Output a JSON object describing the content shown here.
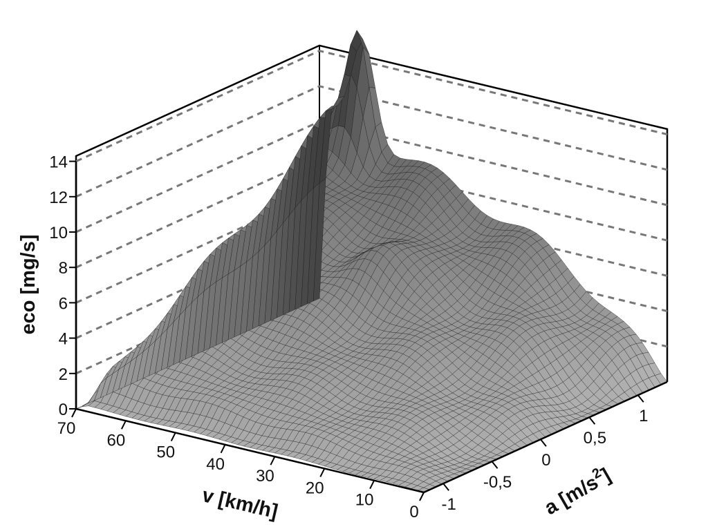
{
  "chart_data": {
    "type": "surface",
    "title": "",
    "xlabel": "v [km/h]",
    "ylabel": "a [m/s",
    "ylabel_sup": "2",
    "ylabel_suffix": "]",
    "zlabel": "eco [mg/s]",
    "xlim": [
      0,
      70
    ],
    "ylim": [
      -1.2,
      1.3
    ],
    "zlim": [
      0,
      14
    ],
    "x_ticks": [
      "0",
      "10",
      "20",
      "30",
      "40",
      "50",
      "60",
      "70"
    ],
    "y_ticks": [
      "-1",
      "-0,5",
      "0",
      "0,5",
      "1"
    ],
    "z_ticks": [
      "0",
      "2",
      "4",
      "6",
      "8",
      "10",
      "12",
      "14"
    ],
    "grid": "dashed z-levels on back walls",
    "surface_color": "#8a8a8a",
    "peak": {
      "v": 62,
      "a": 1.25,
      "eco": 14.5
    },
    "profile_high_accel": [
      {
        "v": 0,
        "eco": 0.3
      },
      {
        "v": 10,
        "eco": 3.2
      },
      {
        "v": 20,
        "eco": 6.0
      },
      {
        "v": 30,
        "eco": 8.0
      },
      {
        "v": 40,
        "eco": 9.5
      },
      {
        "v": 50,
        "eco": 11.0
      },
      {
        "v": 60,
        "eco": 14.5
      },
      {
        "v": 70,
        "eco": 9.0
      }
    ]
  }
}
